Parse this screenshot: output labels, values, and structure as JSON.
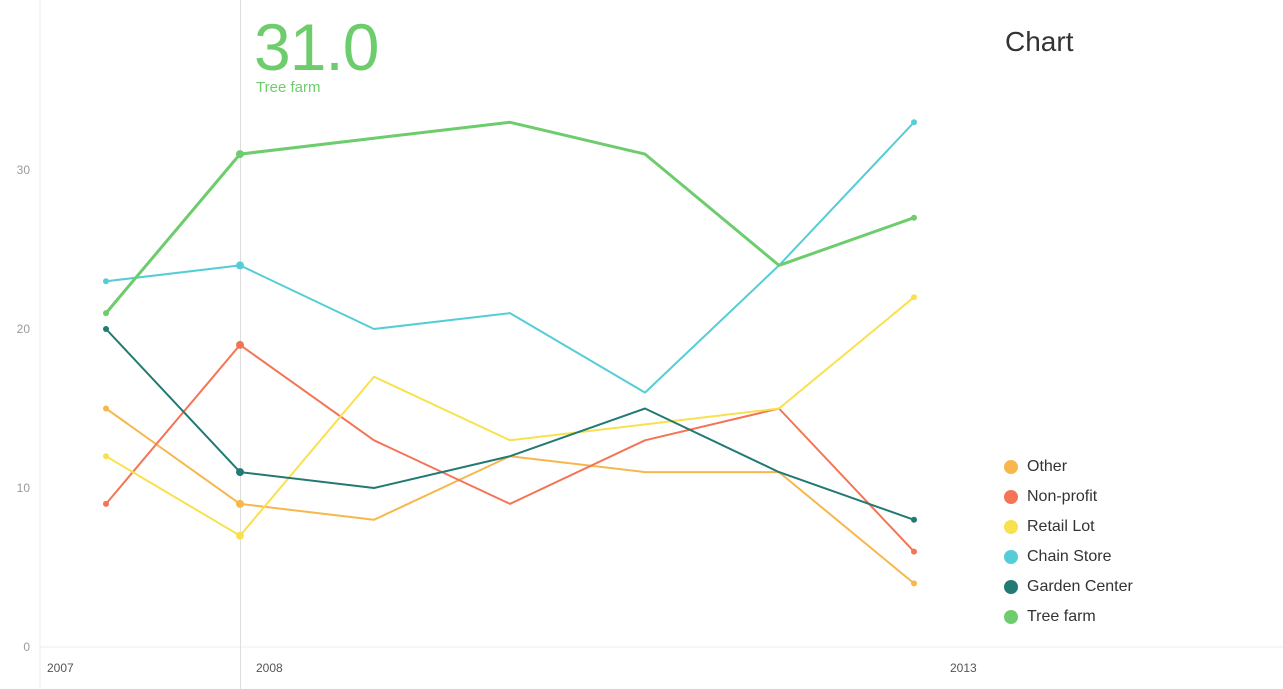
{
  "readout": {
    "value": "31.0",
    "label": "Tree farm",
    "color": "#6dcc6b"
  },
  "chart_data": {
    "type": "line",
    "title": "Chart",
    "x": [
      2007.3,
      2008,
      2008.7,
      2009.4,
      2010.1,
      2010.8,
      2011.5
    ],
    "xticks": [
      {
        "value": 2007,
        "label": "2007"
      },
      {
        "value": 2008,
        "label": "2008"
      },
      {
        "value": 2013,
        "label": "2013"
      }
    ],
    "xlim": [
      2007,
      2013
    ],
    "yticks": [
      0,
      10,
      20,
      30
    ],
    "ylim": [
      0,
      35
    ],
    "grid": false,
    "legend": "bottom-right",
    "crosshair_x": 2008,
    "series": [
      {
        "name": "Other",
        "color": "#f7b74c",
        "values": [
          15,
          9,
          8,
          12,
          11,
          11,
          4
        ]
      },
      {
        "name": "Non-profit",
        "color": "#f47455",
        "values": [
          9,
          19,
          13,
          9,
          13,
          15,
          6
        ]
      },
      {
        "name": "Retail Lot",
        "color": "#f9e14e",
        "values": [
          12,
          7,
          17,
          13,
          14,
          15,
          22
        ]
      },
      {
        "name": "Chain Store",
        "color": "#55cdd6",
        "values": [
          23,
          24,
          20,
          21,
          16,
          24,
          33
        ]
      },
      {
        "name": "Garden Center",
        "color": "#227a72",
        "values": [
          20,
          11,
          10,
          12,
          15,
          11,
          8
        ]
      },
      {
        "name": "Tree farm",
        "color": "#6dcc6b",
        "values": [
          21,
          31,
          32,
          33,
          31,
          24,
          27
        ]
      }
    ]
  }
}
